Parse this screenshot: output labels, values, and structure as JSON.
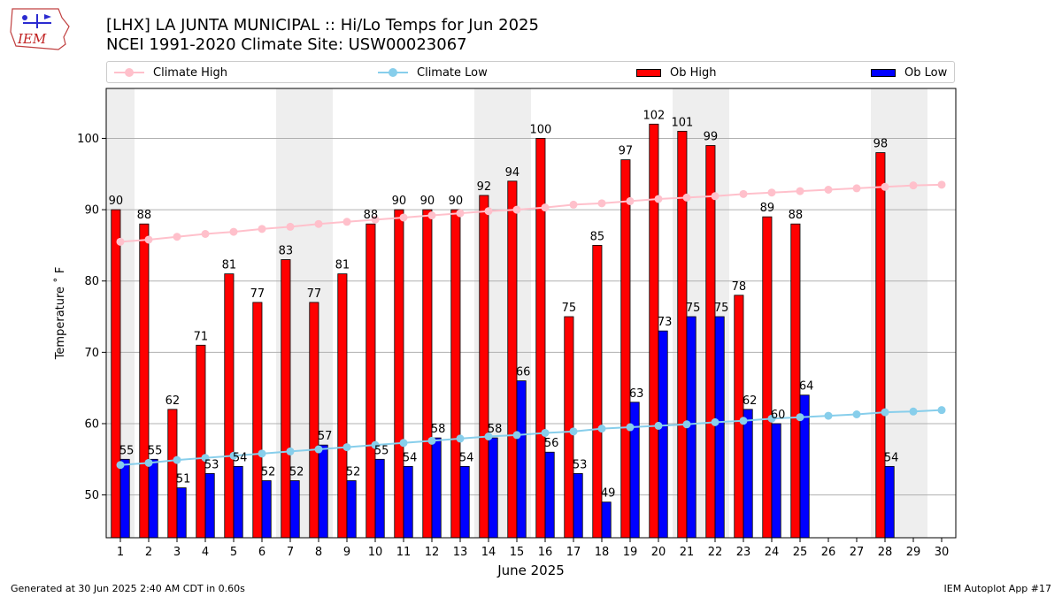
{
  "logo": {
    "text": "IEM"
  },
  "title_line1": "[LHX] LA JUNTA MUNICIPAL :: Hi/Lo Temps for Jun 2025",
  "title_line2": "NCEI 1991-2020 Climate Site: USW00023067",
  "legend": {
    "climate_high": "Climate High",
    "climate_low": "Climate Low",
    "ob_high": "Ob High",
    "ob_low": "Ob Low"
  },
  "colors": {
    "ob_high": "#ff0000",
    "ob_low": "#0000ff",
    "climate_high": "#ffc0cb",
    "climate_low": "#87ceeb",
    "weekend_band": "#eeeeee",
    "grid": "#b0b0b0"
  },
  "footer": {
    "left": "Generated at 30 Jun 2025 2:40 AM CDT in 0.60s",
    "right": "IEM Autoplot App #17"
  },
  "chart_data": {
    "type": "bar",
    "xlabel": "June 2025",
    "ylabel": "Temperature ˚ F",
    "ylim": [
      44,
      107
    ],
    "yticks": [
      50,
      60,
      70,
      80,
      90,
      100
    ],
    "categories": [
      1,
      2,
      3,
      4,
      5,
      6,
      7,
      8,
      9,
      10,
      11,
      12,
      13,
      14,
      15,
      16,
      17,
      18,
      19,
      20,
      21,
      22,
      23,
      24,
      25,
      26,
      27,
      28,
      29,
      30
    ],
    "shaded_weekend_days": [
      [
        1,
        1
      ],
      [
        7,
        8
      ],
      [
        14,
        15
      ],
      [
        21,
        22
      ],
      [
        28,
        29
      ]
    ],
    "grid": "horizontal",
    "legend_position": "top",
    "series": [
      {
        "name": "Ob High",
        "kind": "bar",
        "values": [
          90,
          88,
          62,
          71,
          81,
          77,
          83,
          77,
          81,
          88,
          90,
          90,
          90,
          92,
          94,
          100,
          75,
          85,
          97,
          102,
          101,
          99,
          78,
          89,
          88,
          null,
          null,
          98,
          null,
          null
        ]
      },
      {
        "name": "Ob Low",
        "kind": "bar",
        "values": [
          55,
          55,
          51,
          53,
          54,
          52,
          52,
          57,
          52,
          55,
          54,
          58,
          54,
          58,
          66,
          56,
          53,
          49,
          63,
          73,
          75,
          75,
          62,
          60,
          64,
          null,
          null,
          54,
          null,
          null
        ]
      },
      {
        "name": "Climate High",
        "kind": "line",
        "values": [
          85.5,
          85.8,
          86.2,
          86.6,
          86.9,
          87.3,
          87.6,
          88.0,
          88.3,
          88.6,
          88.9,
          89.2,
          89.5,
          89.8,
          90.0,
          90.3,
          90.7,
          90.9,
          91.2,
          91.5,
          91.7,
          91.9,
          92.2,
          92.4,
          92.6,
          92.8,
          93.0,
          93.2,
          93.4,
          93.5
        ]
      },
      {
        "name": "Climate Low",
        "kind": "line",
        "values": [
          54.2,
          54.5,
          54.9,
          55.2,
          55.5,
          55.8,
          56.1,
          56.4,
          56.7,
          57.0,
          57.3,
          57.6,
          57.9,
          58.2,
          58.4,
          58.7,
          58.9,
          59.3,
          59.5,
          59.7,
          59.9,
          60.2,
          60.4,
          60.7,
          60.9,
          61.1,
          61.3,
          61.6,
          61.7,
          61.9
        ]
      }
    ]
  }
}
